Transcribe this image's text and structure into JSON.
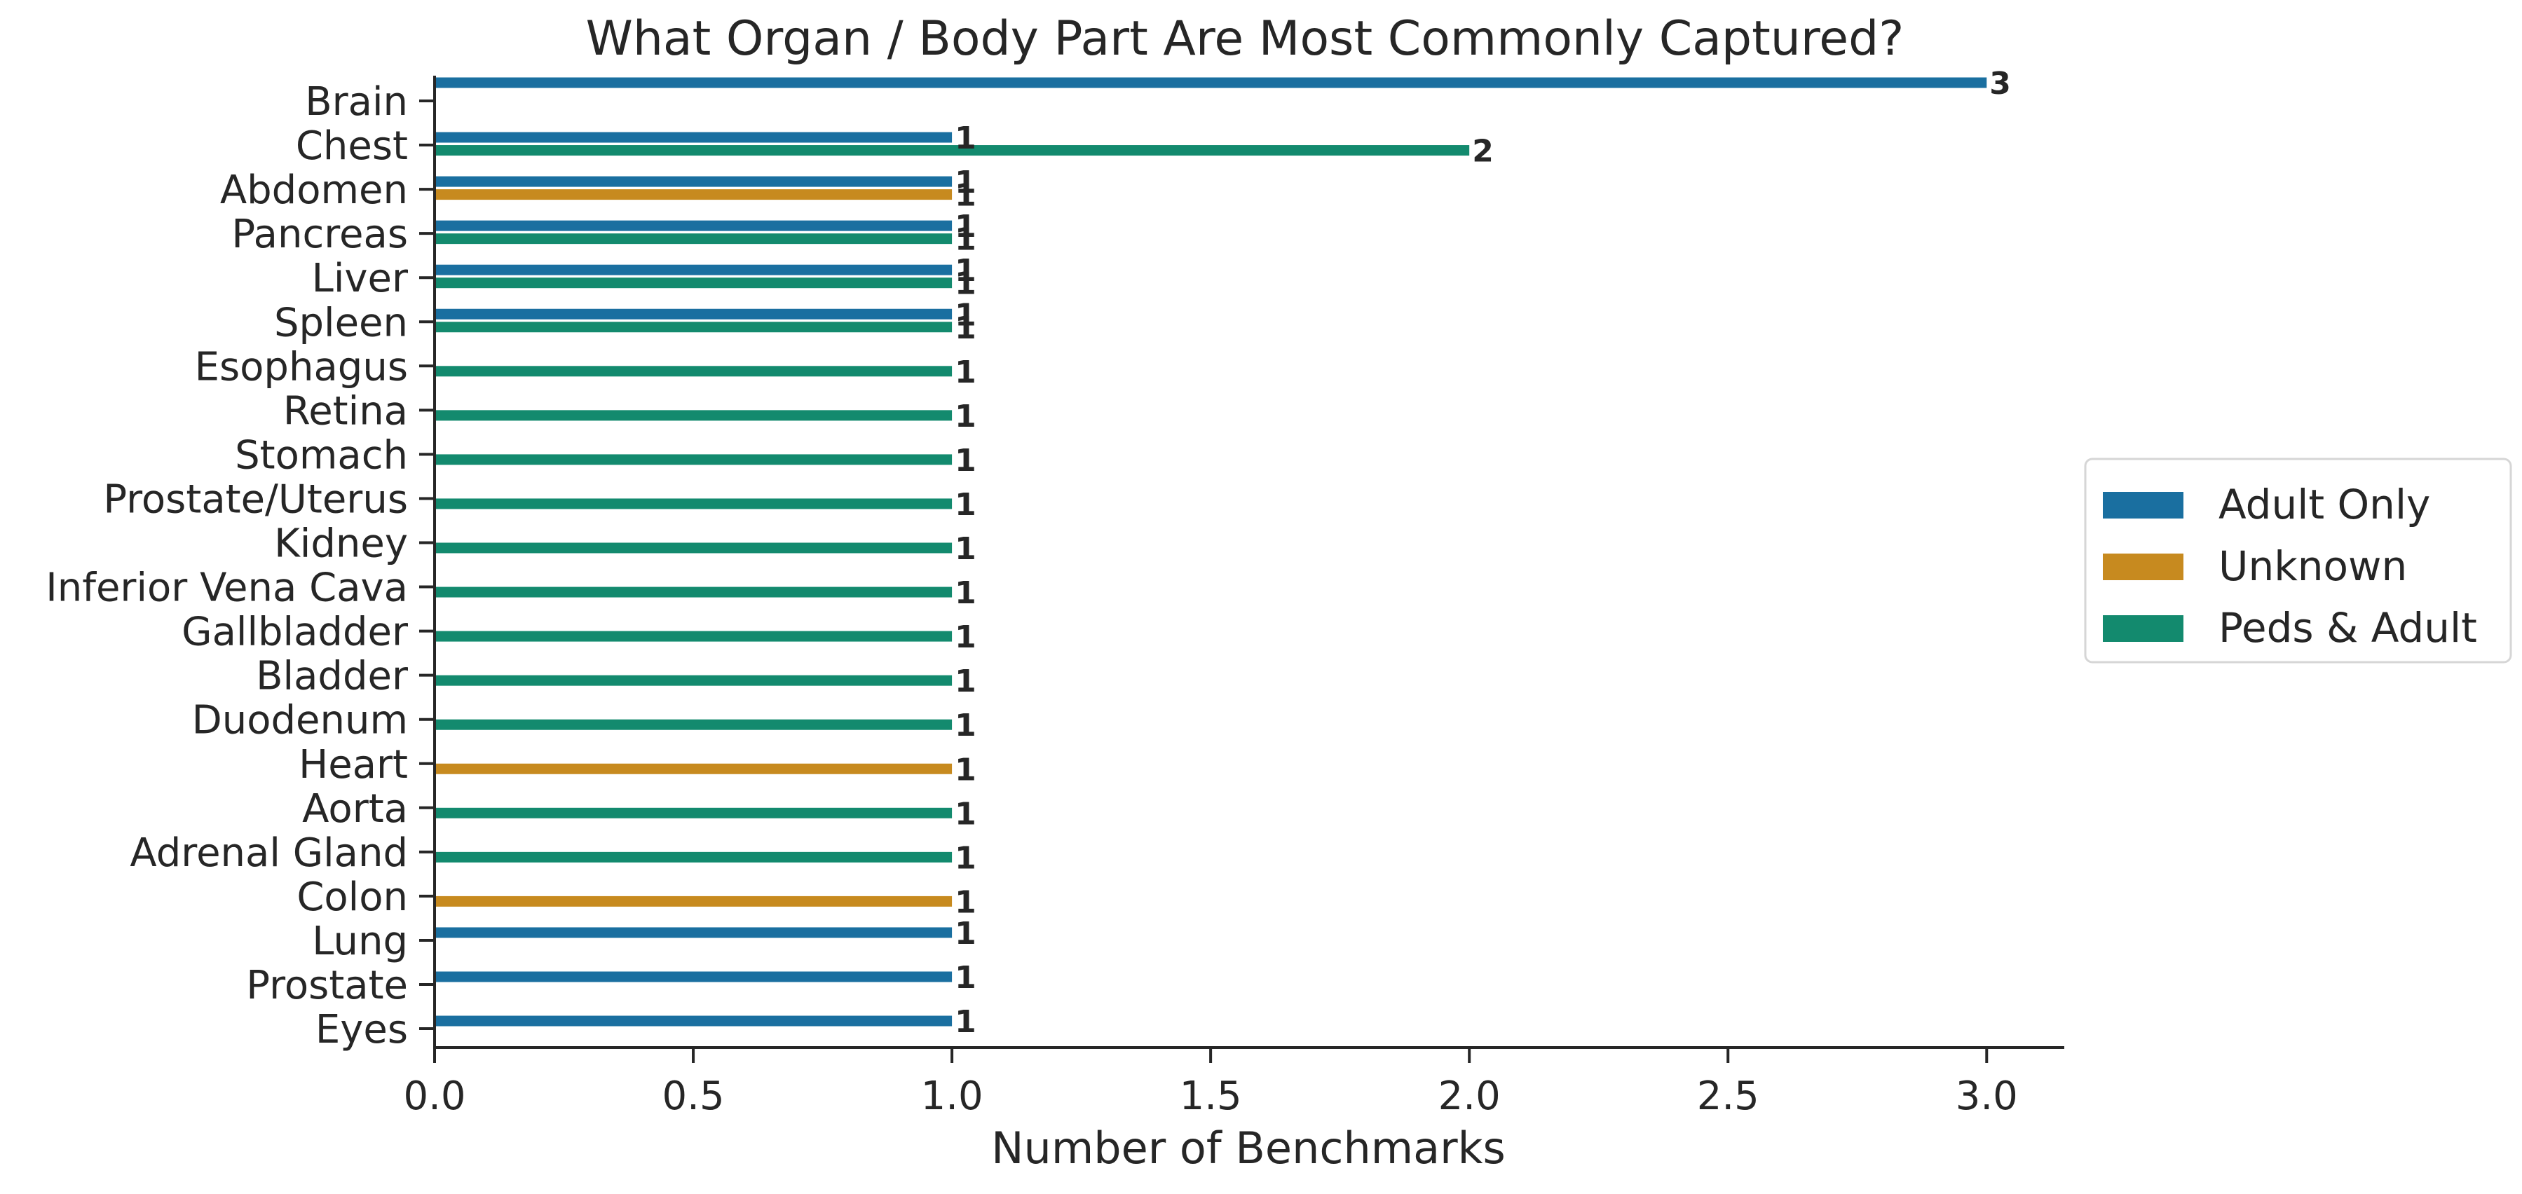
{
  "chart_data": {
    "type": "bar",
    "orientation": "horizontal",
    "title": "What Organ / Body Part Are Most Commonly Captured?",
    "xlabel": "Number of Benchmarks",
    "ylabel": "",
    "xlim": [
      0,
      3.15
    ],
    "xticks": [
      "0.0",
      "0.5",
      "1.0",
      "1.5",
      "2.0",
      "2.5",
      "3.0"
    ],
    "xtick_values": [
      0,
      0.5,
      1.0,
      1.5,
      2.0,
      2.5,
      3.0
    ],
    "grid": false,
    "legend_position": "right",
    "categories": [
      "Brain",
      "Chest",
      "Abdomen",
      "Pancreas",
      "Liver",
      "Spleen",
      "Esophagus",
      "Retina",
      "Stomach",
      "Prostate/Uterus",
      "Kidney",
      "Inferior Vena Cava",
      "Gallbladder",
      "Bladder",
      "Duodenum",
      "Heart",
      "Aorta",
      "Adrenal Gland",
      "Colon",
      "Lung",
      "Prostate",
      "Eyes"
    ],
    "series": [
      {
        "name": "Adult Only",
        "color": "#1a6fa0",
        "values": [
          3,
          1,
          1,
          1,
          1,
          1,
          null,
          null,
          null,
          null,
          null,
          null,
          null,
          null,
          null,
          null,
          null,
          null,
          null,
          1,
          1,
          1
        ]
      },
      {
        "name": "Unknown",
        "color": "#c78a1f",
        "values": [
          null,
          null,
          1,
          null,
          null,
          null,
          null,
          null,
          null,
          null,
          null,
          null,
          null,
          null,
          null,
          1,
          null,
          null,
          1,
          null,
          null,
          null
        ]
      },
      {
        "name": "Peds & Adult",
        "color": "#138a6e",
        "values": [
          null,
          2,
          null,
          1,
          1,
          1,
          1,
          1,
          1,
          1,
          1,
          1,
          1,
          1,
          1,
          null,
          1,
          1,
          null,
          null,
          null,
          null
        ]
      }
    ]
  }
}
